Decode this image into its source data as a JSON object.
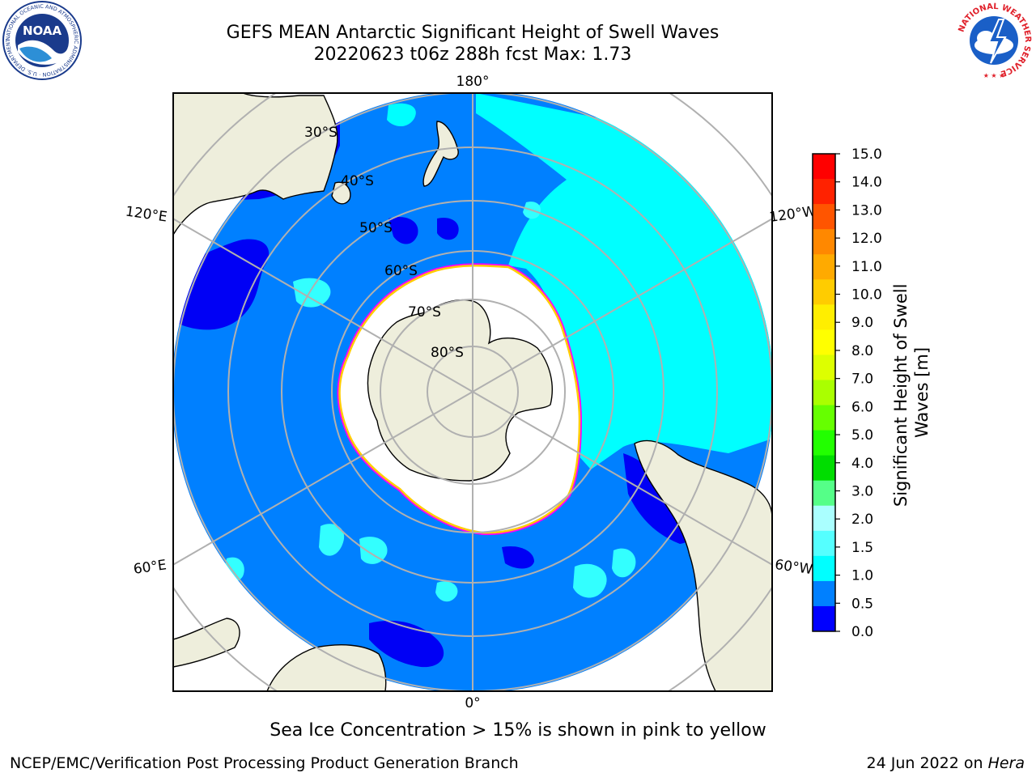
{
  "header": {
    "title_line1": "GEFS MEAN Antarctic Significant Height of Swell Waves",
    "title_line2": "20220623 t06z 288h fcst   Max: 1.73"
  },
  "logos": {
    "left": {
      "text": "NOAA",
      "ring_text": "NATIONAL OCEANIC AND ATMOSPHERIC ADMINISTRATION · U.S. DEPARTMENT OF COMMERCE ·"
    },
    "right": {
      "ring_text": "NATIONAL WEATHER SERVICE"
    }
  },
  "map": {
    "longitude_labels": {
      "top": "180°",
      "bottom": "0°",
      "upper_left": "120°E",
      "upper_right": "120°W",
      "lower_left": "60°E",
      "lower_right": "60°W"
    },
    "latitude_labels": [
      "30°S",
      "40°S",
      "50°S",
      "60°S",
      "70°S",
      "80°S"
    ],
    "colors": {
      "ocean_deep": "#0080ff",
      "ocean_low": "#0000f5",
      "ocean_cyan": "#00ffff",
      "land": "#eeeedc",
      "ice": "#ffffff",
      "ice_edge_pink": "#ff00ff",
      "ice_edge_yellow": "#ffcc00",
      "grid": "#b0b0b0"
    }
  },
  "colorbar": {
    "label": "Significant Height of Swell Waves [m]",
    "label_line1": "Significant Height of Swell",
    "label_line2": "Waves [m]",
    "ticks": [
      "15.0",
      "14.0",
      "13.0",
      "12.0",
      "11.0",
      "10.0",
      "9.0",
      "8.0",
      "7.0",
      "6.0",
      "5.0",
      "4.0",
      "3.0",
      "2.0",
      "1.5",
      "1.0",
      "0.5",
      "0.0"
    ],
    "colors": [
      "#ff0000",
      "#ff2200",
      "#ff5500",
      "#ff8800",
      "#ffaa00",
      "#ffcc00",
      "#ffee00",
      "#ffff00",
      "#ddff00",
      "#aaff00",
      "#66ff00",
      "#22ff00",
      "#00dd00",
      "#55ff88",
      "#aaffff",
      "#55ffff",
      "#00ffff",
      "#0080ff",
      "#0000ff"
    ]
  },
  "footer": {
    "note": "Sea Ice Concentration > 15% is shown in pink to yellow",
    "left": "NCEP/EMC/Verification Post Processing Product Generation Branch",
    "right_date": "24 Jun 2022 on ",
    "right_machine": "Hera"
  }
}
